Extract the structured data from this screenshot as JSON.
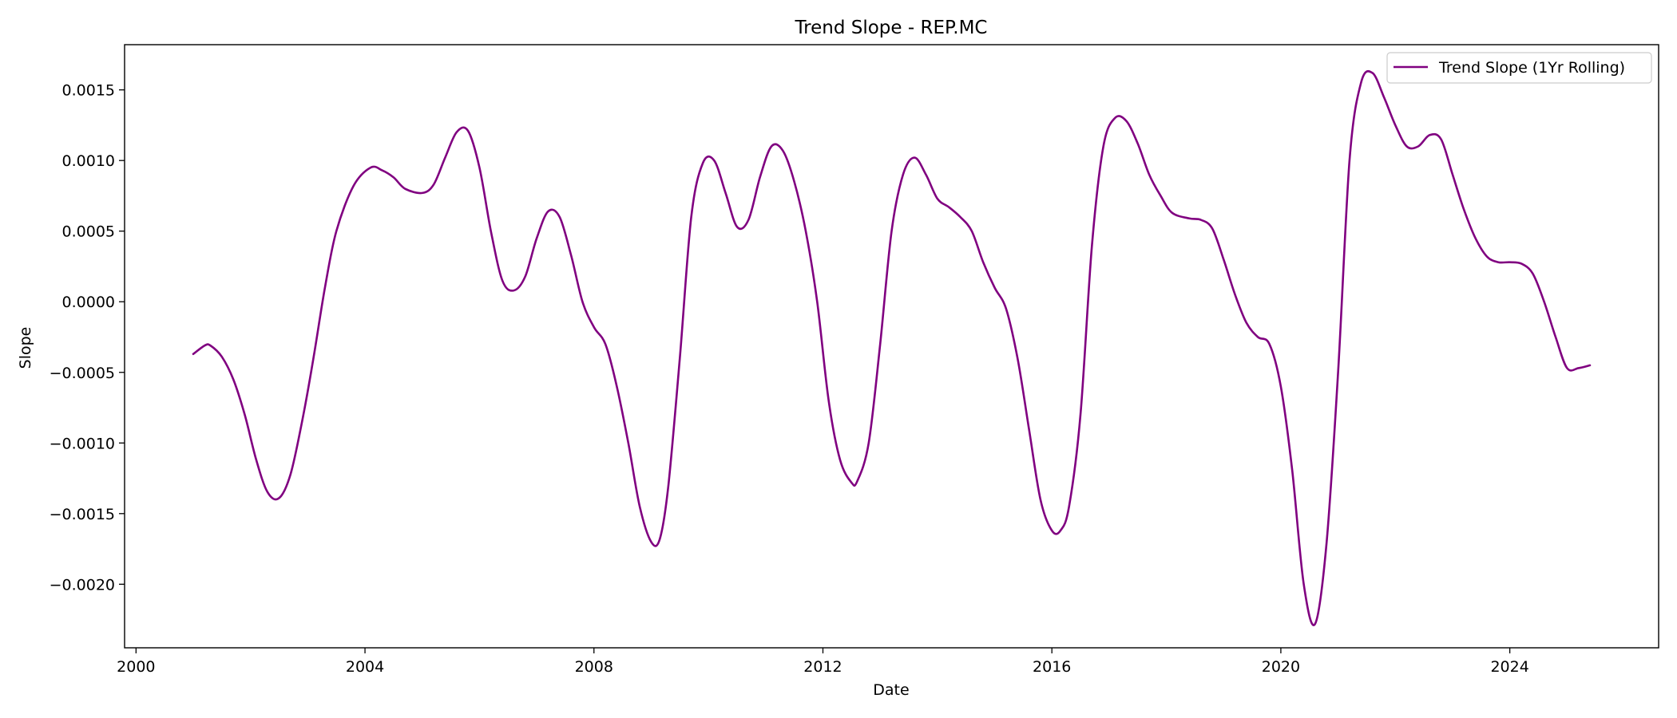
{
  "chart_data": {
    "type": "line",
    "title": "Trend Slope - REP.MC",
    "xlabel": "Date",
    "ylabel": "Slope",
    "xlim": [
      1999.8,
      2026.6
    ],
    "ylim": [
      -0.00245,
      0.00182
    ],
    "xticks": [
      2000,
      2004,
      2008,
      2012,
      2016,
      2020,
      2024
    ],
    "xtick_labels": [
      "2000",
      "2004",
      "2008",
      "2012",
      "2016",
      "2020",
      "2024"
    ],
    "yticks": [
      0.0015,
      0.001,
      0.0005,
      0.0,
      -0.0005,
      -0.001,
      -0.0015,
      -0.002
    ],
    "ytick_labels": [
      "0.0015",
      "0.0010",
      "0.0005",
      "0.0000",
      "−0.0005",
      "−0.0010",
      "−0.0015",
      "−0.0020"
    ],
    "grid": false,
    "legend_position": "top-right",
    "series": [
      {
        "name": "Trend Slope (1Yr Rolling)",
        "color": "#800080",
        "x": [
          2001.0,
          2001.2,
          2001.3,
          2001.5,
          2001.7,
          2001.9,
          2002.1,
          2002.3,
          2002.5,
          2002.7,
          2002.9,
          2003.1,
          2003.3,
          2003.5,
          2003.8,
          2004.1,
          2004.3,
          2004.5,
          2004.7,
          2005.0,
          2005.2,
          2005.4,
          2005.6,
          2005.8,
          2006.0,
          2006.2,
          2006.4,
          2006.6,
          2006.8,
          2007.0,
          2007.2,
          2007.4,
          2007.6,
          2007.8,
          2008.0,
          2008.2,
          2008.4,
          2008.6,
          2008.8,
          2009.0,
          2009.15,
          2009.3,
          2009.5,
          2009.7,
          2009.9,
          2010.1,
          2010.3,
          2010.5,
          2010.7,
          2010.9,
          2011.1,
          2011.3,
          2011.5,
          2011.7,
          2011.9,
          2012.1,
          2012.3,
          2012.5,
          2012.6,
          2012.8,
          2013.0,
          2013.2,
          2013.4,
          2013.6,
          2013.8,
          2014.0,
          2014.2,
          2014.4,
          2014.6,
          2014.8,
          2015.0,
          2015.2,
          2015.4,
          2015.6,
          2015.8,
          2016.0,
          2016.15,
          2016.3,
          2016.5,
          2016.7,
          2016.9,
          2017.1,
          2017.3,
          2017.5,
          2017.7,
          2017.9,
          2018.1,
          2018.4,
          2018.6,
          2018.8,
          2019.0,
          2019.2,
          2019.4,
          2019.6,
          2019.8,
          2020.0,
          2020.2,
          2020.4,
          2020.6,
          2020.8,
          2021.0,
          2021.2,
          2021.4,
          2021.6,
          2021.8,
          2022.0,
          2022.2,
          2022.4,
          2022.6,
          2022.8,
          2023.0,
          2023.2,
          2023.4,
          2023.6,
          2023.8,
          2024.0,
          2024.2,
          2024.4,
          2024.6,
          2024.8,
          2025.0,
          2025.2,
          2025.4
        ],
        "y": [
          -0.00037,
          -0.00031,
          -0.00031,
          -0.00039,
          -0.00055,
          -0.0008,
          -0.00112,
          -0.00135,
          -0.00139,
          -0.00122,
          -0.00085,
          -0.0004,
          0.0001,
          0.0005,
          0.00082,
          0.00095,
          0.00093,
          0.00088,
          0.0008,
          0.00077,
          0.00083,
          0.00102,
          0.0012,
          0.00121,
          0.00095,
          0.0005,
          0.00015,
          8e-05,
          0.00018,
          0.00045,
          0.00064,
          0.0006,
          0.00033,
          0.0,
          -0.00018,
          -0.0003,
          -0.0006,
          -0.001,
          -0.00145,
          -0.0017,
          -0.00168,
          -0.0013,
          -0.0004,
          0.0006,
          0.00098,
          0.001,
          0.00077,
          0.00053,
          0.00058,
          0.00088,
          0.0011,
          0.00107,
          0.00085,
          0.0005,
          0.0,
          -0.0007,
          -0.00112,
          -0.00128,
          -0.00127,
          -0.001,
          -0.0003,
          0.0005,
          0.0009,
          0.00102,
          0.0009,
          0.00073,
          0.00067,
          0.0006,
          0.0005,
          0.00028,
          0.0001,
          -5e-05,
          -0.0004,
          -0.0009,
          -0.0014,
          -0.00162,
          -0.00162,
          -0.00145,
          -0.0008,
          0.0004,
          0.0011,
          0.0013,
          0.00128,
          0.00112,
          0.0009,
          0.00075,
          0.00063,
          0.00059,
          0.00058,
          0.00052,
          0.0003,
          5e-05,
          -0.00015,
          -0.00025,
          -0.0003,
          -0.0006,
          -0.0012,
          -0.002,
          -0.00228,
          -0.0017,
          -0.0005,
          0.001,
          0.00155,
          0.00162,
          0.00145,
          0.00125,
          0.0011,
          0.0011,
          0.00118,
          0.00115,
          0.0009,
          0.00065,
          0.00045,
          0.00032,
          0.00028,
          0.00028,
          0.00027,
          0.0002,
          0.0,
          -0.00025,
          -0.00047,
          -0.00047,
          -0.00045
        ]
      }
    ]
  }
}
